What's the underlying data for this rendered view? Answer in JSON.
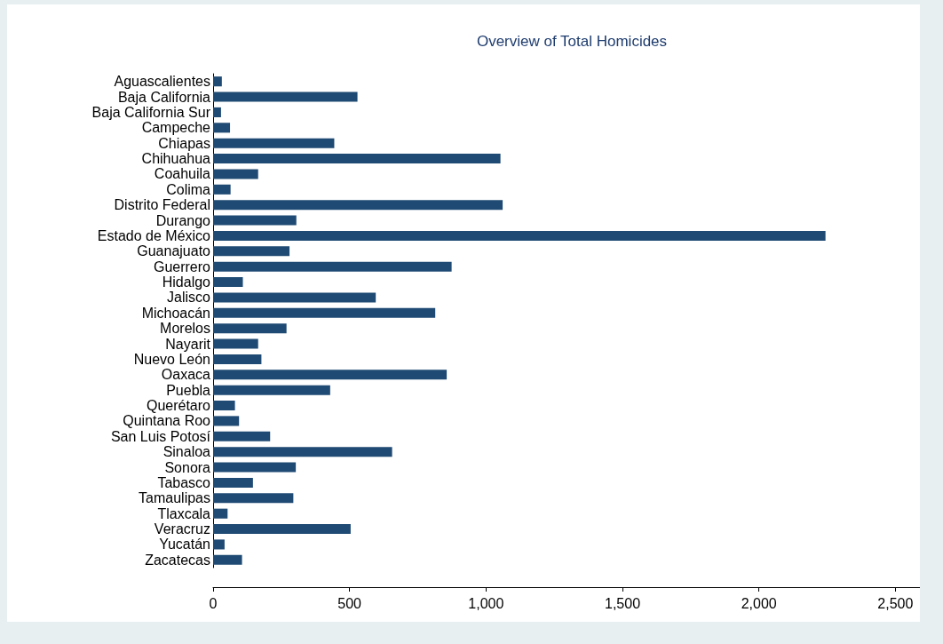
{
  "chart_data": {
    "type": "bar",
    "orientation": "horizontal",
    "title": "Overview of Total Homicides",
    "categories": [
      "Aguascalientes",
      "Baja California",
      "Baja California Sur",
      "Campeche",
      "Chiapas",
      "Chihuahua",
      "Coahuila",
      "Colima",
      "Distrito Federal",
      "Durango",
      "Estado de México",
      "Guanajuato",
      "Guerrero",
      "Hidalgo",
      "Jalisco",
      "Michoacán",
      "Morelos",
      "Nayarit",
      "Nuevo León",
      "Oaxaca",
      "Puebla",
      "Querétaro",
      "Quintana Roo",
      "San Luis Potosí",
      "Sinaloa",
      "Sonora",
      "Tabasco",
      "Tamaulipas",
      "Tlaxcala",
      "Veracruz",
      "Yucatán",
      "Zacatecas"
    ],
    "values": [
      32,
      529,
      29,
      62,
      444,
      1053,
      165,
      64,
      1061,
      305,
      2244,
      280,
      874,
      109,
      596,
      814,
      269,
      165,
      177,
      856,
      429,
      80,
      95,
      209,
      656,
      303,
      146,
      294,
      53,
      504,
      42,
      106
    ],
    "color": "#1f4a73",
    "xlim": [
      0,
      2590
    ],
    "xticks": [
      0,
      {
        "value": 500,
        "label": "500"
      },
      {
        "value": 1000,
        "label": "1,000"
      },
      {
        "value": 1500,
        "label": "1,500"
      },
      {
        "value": 2000,
        "label": "2,000"
      },
      {
        "value": 2500,
        "label": "2,500"
      }
    ],
    "grid": false
  }
}
